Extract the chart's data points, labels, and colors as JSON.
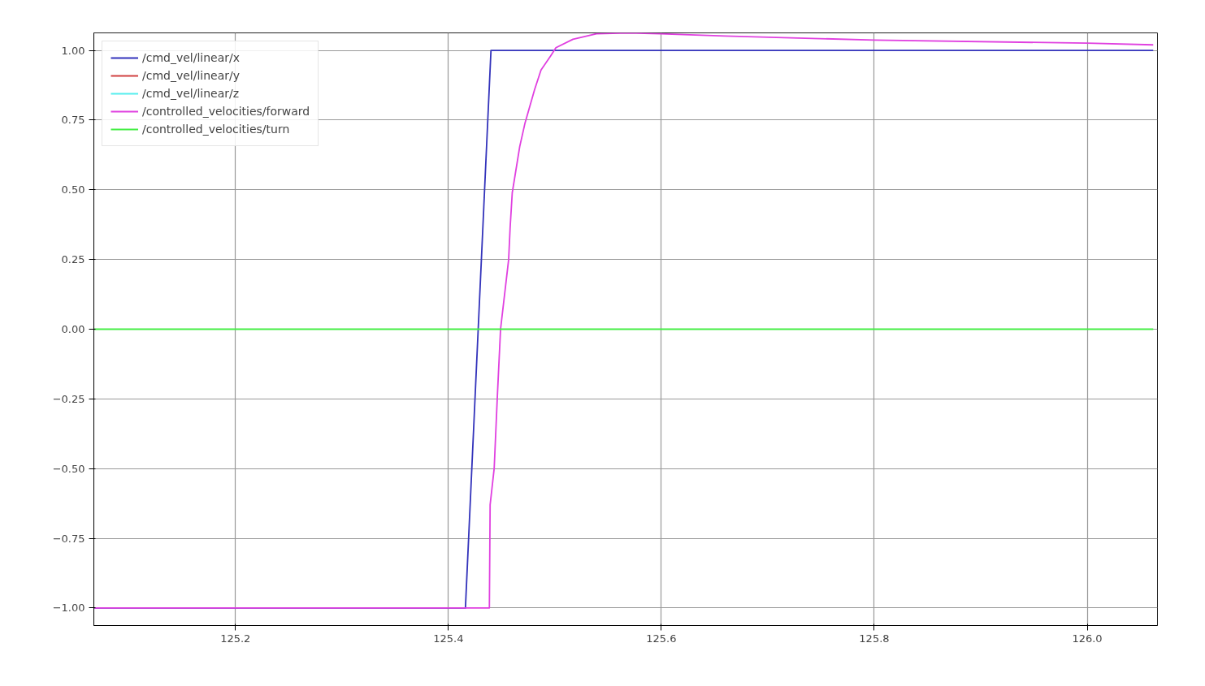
{
  "chart_data": {
    "type": "line",
    "xlim": [
      125.067,
      126.066
    ],
    "ylim": [
      -1.063,
      1.063
    ],
    "xticks": [
      {
        "value": 125.2,
        "label": "125.2"
      },
      {
        "value": 125.4,
        "label": "125.4"
      },
      {
        "value": 125.6,
        "label": "125.6"
      },
      {
        "value": 125.8,
        "label": "125.8"
      },
      {
        "value": 126.0,
        "label": "126.0"
      }
    ],
    "yticks": [
      {
        "value": -1,
        "label": "−1.00"
      },
      {
        "value": -0.75,
        "label": "−0.75"
      },
      {
        "value": -0.5,
        "label": "−0.50"
      },
      {
        "value": -0.25,
        "label": "−0.25"
      },
      {
        "value": 0,
        "label": "0.00"
      },
      {
        "value": 0.25,
        "label": "0.25"
      },
      {
        "value": 0.5,
        "label": "0.50"
      },
      {
        "value": 0.75,
        "label": "0.75"
      },
      {
        "value": 1,
        "label": "1.00"
      }
    ],
    "grid": true,
    "legend": "top left",
    "series": [
      {
        "name": "/cmd_vel/linear/x",
        "color": "#3333bb",
        "x": [
          125.067,
          125.416,
          125.44,
          126.062
        ],
        "values": [
          -1,
          -1,
          1,
          1
        ]
      },
      {
        "name": "/cmd_vel/linear/y",
        "color": "#d04040"
      },
      {
        "name": "/cmd_vel/linear/z",
        "color": "#55eeee"
      },
      {
        "name": "/controlled_velocities/forward",
        "color": "#e040e0",
        "x": [
          125.067,
          125.4385,
          125.4392,
          125.443,
          125.446,
          125.449,
          125.4566,
          125.458,
          125.46,
          125.467,
          125.472,
          125.481,
          125.487,
          125.496,
          125.501,
          125.517,
          125.539,
          125.569,
          125.599,
          125.66,
          125.8,
          126.0,
          126.062
        ],
        "values": [
          -1,
          -1,
          -0.63,
          -0.5,
          -0.24,
          0.0,
          0.25,
          0.365,
          0.49,
          0.655,
          0.74,
          0.86,
          0.93,
          0.98,
          1.01,
          1.04,
          1.06,
          1.063,
          1.06,
          1.052,
          1.037,
          1.026,
          1.02
        ]
      },
      {
        "name": "/controlled_velocities/turn",
        "color": "#44ee44",
        "x": [
          125.067,
          126.062
        ],
        "values": [
          0,
          0
        ]
      }
    ]
  }
}
